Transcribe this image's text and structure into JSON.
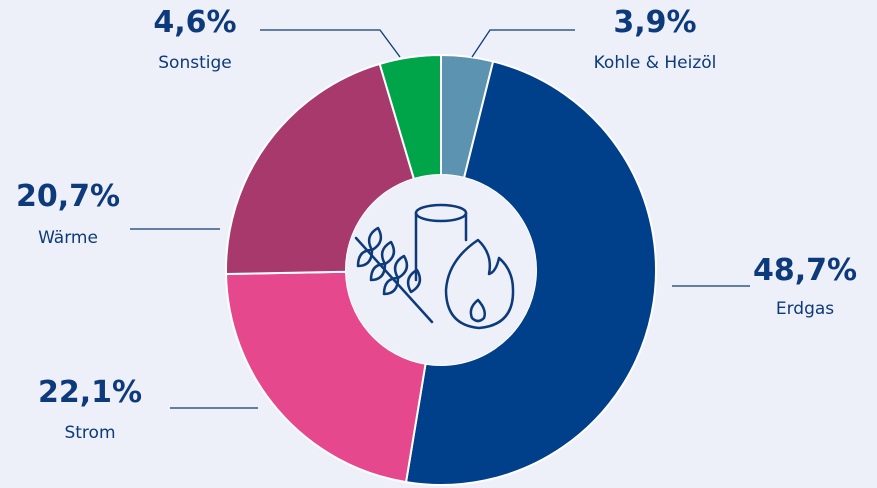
{
  "chart_data": {
    "type": "donut",
    "categories": [
      "Kohle & Heizöl",
      "Erdgas",
      "Strom",
      "Wärme",
      "Sonstige"
    ],
    "values": [
      3.9,
      48.7,
      22.1,
      20.7,
      4.6
    ],
    "value_labels": [
      "3,9%",
      "48,7%",
      "22,1%",
      "20,7%",
      "4,6%"
    ],
    "colors": [
      "#5b93b0",
      "#003f8a",
      "#e5488d",
      "#a8396c",
      "#00a549"
    ]
  }
}
